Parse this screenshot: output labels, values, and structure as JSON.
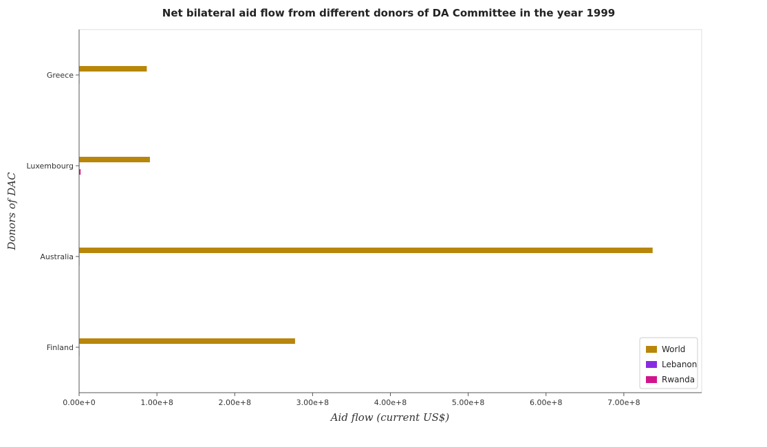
{
  "chart_data": {
    "type": "bar",
    "orientation": "horizontal",
    "title": "Net bilateral aid flow from different donors of DA Committee in the year 1999",
    "xlabel": "Aid flow (current US$)",
    "ylabel": "Donors of DAC",
    "categories": [
      "Greece",
      "Luxembourg",
      "Australia",
      "Finland"
    ],
    "xlim": [
      0,
      800000000
    ],
    "xticks": [
      0,
      100000000,
      200000000,
      300000000,
      400000000,
      500000000,
      600000000,
      700000000
    ],
    "xtick_labels": [
      "0.00e+0",
      "1.00e+8",
      "2.00e+8",
      "3.00e+8",
      "4.00e+8",
      "5.00e+8",
      "6.00e+8",
      "7.00e+8"
    ],
    "series": [
      {
        "name": "World",
        "color": "#b8860b",
        "values": [
          87000000,
          91000000,
          737000000,
          277500000
        ]
      },
      {
        "name": "Lebanon",
        "color": "#8a2be2",
        "values": [
          400000,
          300000,
          30000,
          150000
        ]
      },
      {
        "name": "Rwanda",
        "color": "#d2148c",
        "values": [
          20000,
          1900000,
          20000,
          500000
        ]
      }
    ],
    "legend": "bottom-right",
    "grid": false
  }
}
